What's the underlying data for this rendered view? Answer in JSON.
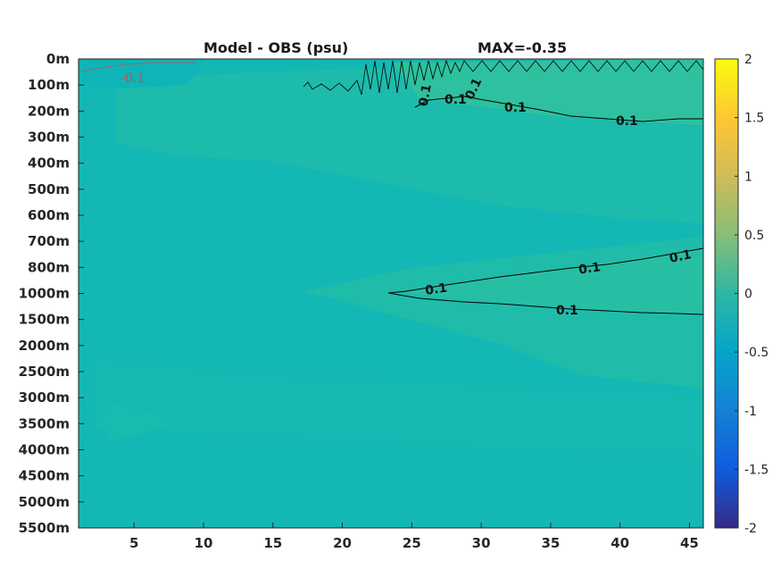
{
  "chart_data": {
    "type": "heatmap",
    "title": "Model - OBS (psu)",
    "subtitle": "MAX=-0.35",
    "xlabel": "",
    "ylabel": "",
    "x_ticks": [
      5,
      10,
      15,
      20,
      25,
      30,
      35,
      40,
      45
    ],
    "xlim": [
      1,
      46
    ],
    "y_tick_labels": [
      "0m",
      "100m",
      "200m",
      "300m",
      "400m",
      "500m",
      "600m",
      "700m",
      "800m",
      "1000m",
      "1500m",
      "2000m",
      "2500m",
      "3000m",
      "3500m",
      "4000m",
      "4500m",
      "5000m",
      "5500m"
    ],
    "colorbar": {
      "ticks": [
        2,
        1.5,
        1,
        0.5,
        0,
        -0.5,
        -1,
        -1.5,
        -2
      ],
      "labels": [
        "2",
        "1.5",
        "1",
        "0.5",
        "0",
        "-0.5",
        "-1",
        "-1.5",
        "-2"
      ],
      "range": [
        -2,
        2
      ],
      "colormap": "parula"
    },
    "background_value": 0.02,
    "regions": [
      {
        "description": "upper-ocean positive anomaly band",
        "value": 0.12
      },
      {
        "description": "mid-depth positive tongue near 1000m",
        "value": 0.12
      }
    ],
    "contours": [
      {
        "level": 0.1,
        "labels": [
          "0.1",
          "0.1",
          "0.1",
          "0.1",
          "0.1"
        ]
      },
      {
        "level": 0.1,
        "labels": [
          "0.1",
          "0.1",
          "0.1"
        ]
      },
      {
        "level": -0.1,
        "labels": [
          "-0.1"
        ]
      }
    ],
    "grid": false,
    "colors": {
      "background_field": "#13b7b4",
      "positive_band": "#22bea6",
      "positive_band_light": "#2ec19f",
      "contour_line": "#000000"
    }
  }
}
